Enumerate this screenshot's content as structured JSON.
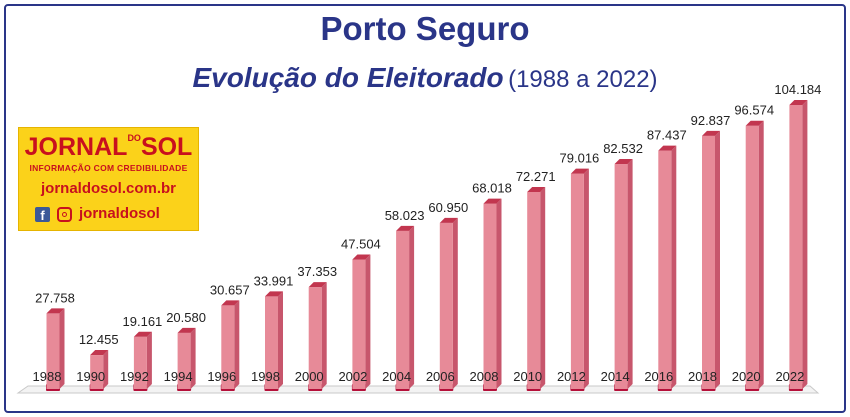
{
  "chart_data": {
    "type": "bar",
    "title": "Porto Seguro",
    "subtitle": "Evolução do Eleitorado",
    "subtitle_range": "(1988 a 2022)",
    "categories": [
      "1988",
      "1990",
      "1992",
      "1994",
      "1996",
      "1998",
      "2000",
      "2002",
      "2004",
      "2006",
      "2008",
      "2010",
      "2012",
      "2014",
      "2016",
      "2018",
      "2020",
      "2022"
    ],
    "values": [
      27758,
      12455,
      19161,
      20580,
      30657,
      33991,
      37353,
      47504,
      58023,
      60950,
      68018,
      72271,
      79016,
      82532,
      87437,
      92837,
      96574,
      104184
    ],
    "value_labels": [
      "27.758",
      "12.455",
      "19.161",
      "20.580",
      "30.657",
      "33.991",
      "37.353",
      "47.504",
      "58.023",
      "60.950",
      "68.018",
      "72.271",
      "79.016",
      "82.532",
      "87.437",
      "92.837",
      "96.574",
      "104.184"
    ],
    "ylim": [
      0,
      104184
    ],
    "grid": false,
    "bar_color": "#e78a98",
    "bar_top_color": "#c2364f",
    "base_marker_color": "#b5103a"
  },
  "logo": {
    "brand_left": "JORNAL",
    "brand_small": "DO",
    "brand_right": "SOL",
    "tagline": "INFORMAÇÃO COM CREDIBILIDADE",
    "website": "jornaldosol.com.br",
    "facebook_icon": "facebook-icon",
    "instagram_icon": "instagram-icon",
    "handle": "jornaldosol"
  },
  "colors": {
    "title": "#2a3588",
    "logo_bg": "#fbd21a",
    "logo_text": "#c8101e"
  }
}
